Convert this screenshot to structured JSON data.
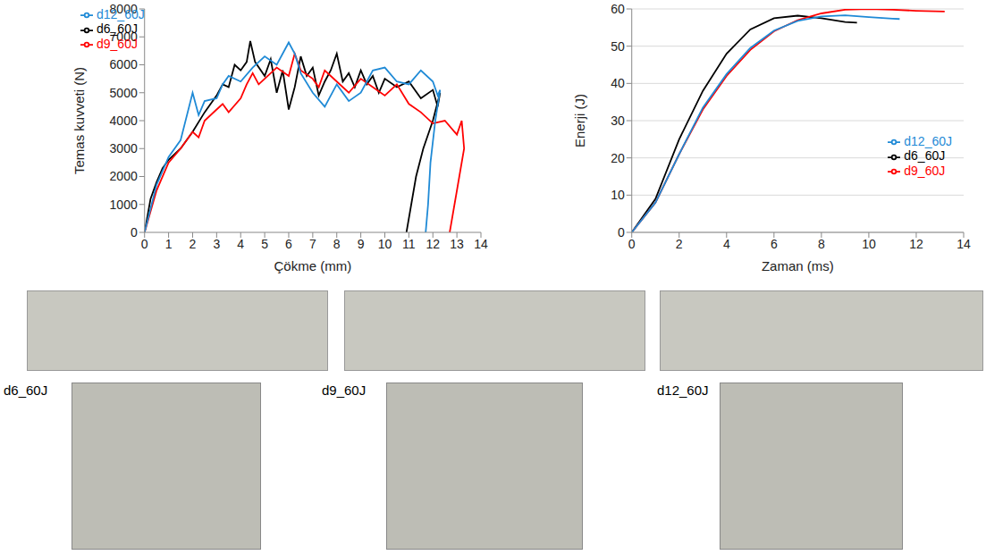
{
  "chart_data": [
    {
      "type": "line",
      "x_label": "Çökme (mm)",
      "y_label": "Temas kuvveti (N)",
      "xlim": [
        0,
        14
      ],
      "xticks": [
        0,
        1,
        2,
        3,
        4,
        5,
        6,
        7,
        8,
        9,
        10,
        11,
        12,
        13,
        14
      ],
      "ylim": [
        0,
        8000
      ],
      "yticks": [
        0,
        1000,
        2000,
        3000,
        4000,
        5000,
        6000,
        7000,
        8000
      ],
      "grid": false,
      "legend": "upper left",
      "series": [
        {
          "name": "d6_60J",
          "color": "#000000",
          "x": [
            0,
            0.25,
            0.5,
            0.75,
            1,
            1.5,
            2,
            2.5,
            3,
            3.25,
            3.5,
            3.75,
            4,
            4.25,
            4.4,
            4.6,
            5,
            5.25,
            5.5,
            5.75,
            6,
            6.25,
            6.5,
            6.75,
            7,
            7.25,
            7.5,
            7.75,
            8,
            8.25,
            8.5,
            8.75,
            9,
            9.25,
            9.5,
            9.75,
            10,
            10.5,
            11,
            11.5,
            12,
            12.2,
            12.3,
            12,
            11.6,
            11.3,
            11.1,
            10.9
          ],
          "values": [
            0,
            1200,
            1800,
            2300,
            2600,
            3000,
            3600,
            4300,
            4900,
            5300,
            5200,
            6000,
            5800,
            6100,
            6850,
            6100,
            5600,
            6200,
            5000,
            5800,
            4400,
            5200,
            6300,
            5600,
            5900,
            4900,
            5400,
            5800,
            6400,
            5400,
            5700,
            5200,
            5800,
            5300,
            5600,
            5000,
            5500,
            5200,
            5400,
            4800,
            5100,
            4500,
            5000,
            4000,
            3000,
            2000,
            1000,
            0
          ]
        },
        {
          "name": "d9_60J",
          "color": "#ff0000",
          "x": [
            0,
            0.5,
            1,
            1.5,
            2,
            2.25,
            2.5,
            3,
            3.25,
            3.5,
            4,
            4.25,
            4.5,
            4.75,
            5,
            5.5,
            6,
            6.25,
            6.5,
            7,
            7.25,
            7.5,
            8,
            8.5,
            9,
            9.5,
            10,
            10.5,
            11,
            11.5,
            12,
            12.5,
            13,
            13.2,
            13.3,
            13.1,
            12.9,
            12.7
          ],
          "values": [
            0,
            1500,
            2500,
            3000,
            3600,
            3400,
            4000,
            4400,
            4600,
            4300,
            4800,
            5300,
            5700,
            5300,
            5500,
            5900,
            5600,
            6400,
            5800,
            5500,
            5200,
            5800,
            5400,
            5000,
            5500,
            5200,
            4900,
            5300,
            4600,
            4300,
            3900,
            4000,
            3500,
            4000,
            3000,
            2000,
            1000,
            0
          ]
        },
        {
          "name": "d12_60J",
          "color": "#1f8ad6",
          "x": [
            0,
            0.5,
            1,
            1.5,
            2,
            2.25,
            2.5,
            3,
            3.25,
            3.5,
            4,
            4.5,
            5,
            5.5,
            6,
            6.25,
            6.5,
            7,
            7.5,
            8,
            8.5,
            9,
            9.5,
            10,
            10.5,
            11,
            11.5,
            12,
            12.2,
            12.3,
            12.1,
            11.9,
            11.8,
            11.7
          ],
          "values": [
            0,
            1700,
            2700,
            3300,
            5000,
            4200,
            4700,
            4800,
            5300,
            5600,
            5400,
            5900,
            6300,
            6000,
            6800,
            6400,
            5700,
            5000,
            4500,
            5300,
            4700,
            5000,
            5800,
            5900,
            5400,
            5300,
            5800,
            5400,
            4900,
            5100,
            4000,
            2500,
            1000,
            0
          ]
        }
      ]
    },
    {
      "type": "line",
      "x_label": "Zaman (ms)",
      "y_label": "Enerji (J)",
      "xlim": [
        0,
        14
      ],
      "xticks": [
        0,
        2,
        4,
        6,
        8,
        10,
        12,
        14
      ],
      "ylim": [
        0,
        60
      ],
      "yticks": [
        0,
        10,
        20,
        30,
        40,
        50,
        60
      ],
      "grid": true,
      "legend": "lower right",
      "series": [
        {
          "name": "d6_60J",
          "color": "#000000",
          "x": [
            0,
            1,
            2,
            3,
            4,
            5,
            6,
            7,
            8,
            9,
            9.5
          ],
          "values": [
            0,
            9,
            25,
            38,
            48,
            54.5,
            57.5,
            58.2,
            57.5,
            56.5,
            56.3
          ]
        },
        {
          "name": "d9_60J",
          "color": "#ff0000",
          "x": [
            0,
            1,
            2,
            3,
            4,
            5,
            6,
            7,
            8,
            9,
            10,
            11,
            12,
            13.2
          ],
          "values": [
            0,
            8,
            21,
            33,
            42,
            49,
            54,
            57,
            58.8,
            59.8,
            60,
            59.8,
            59.5,
            59.3
          ]
        },
        {
          "name": "d12_60J",
          "color": "#1f8ad6",
          "x": [
            0,
            1,
            2,
            3,
            4,
            5,
            6,
            7,
            8,
            9,
            10,
            11,
            11.3
          ],
          "values": [
            0,
            8,
            21,
            33.5,
            42.5,
            49.5,
            54.2,
            56.8,
            58,
            58.3,
            57.8,
            57.4,
            57.3
          ]
        }
      ]
    }
  ],
  "photo_labels": [
    "d6_60J",
    "d9_60J",
    "d12_60J"
  ]
}
